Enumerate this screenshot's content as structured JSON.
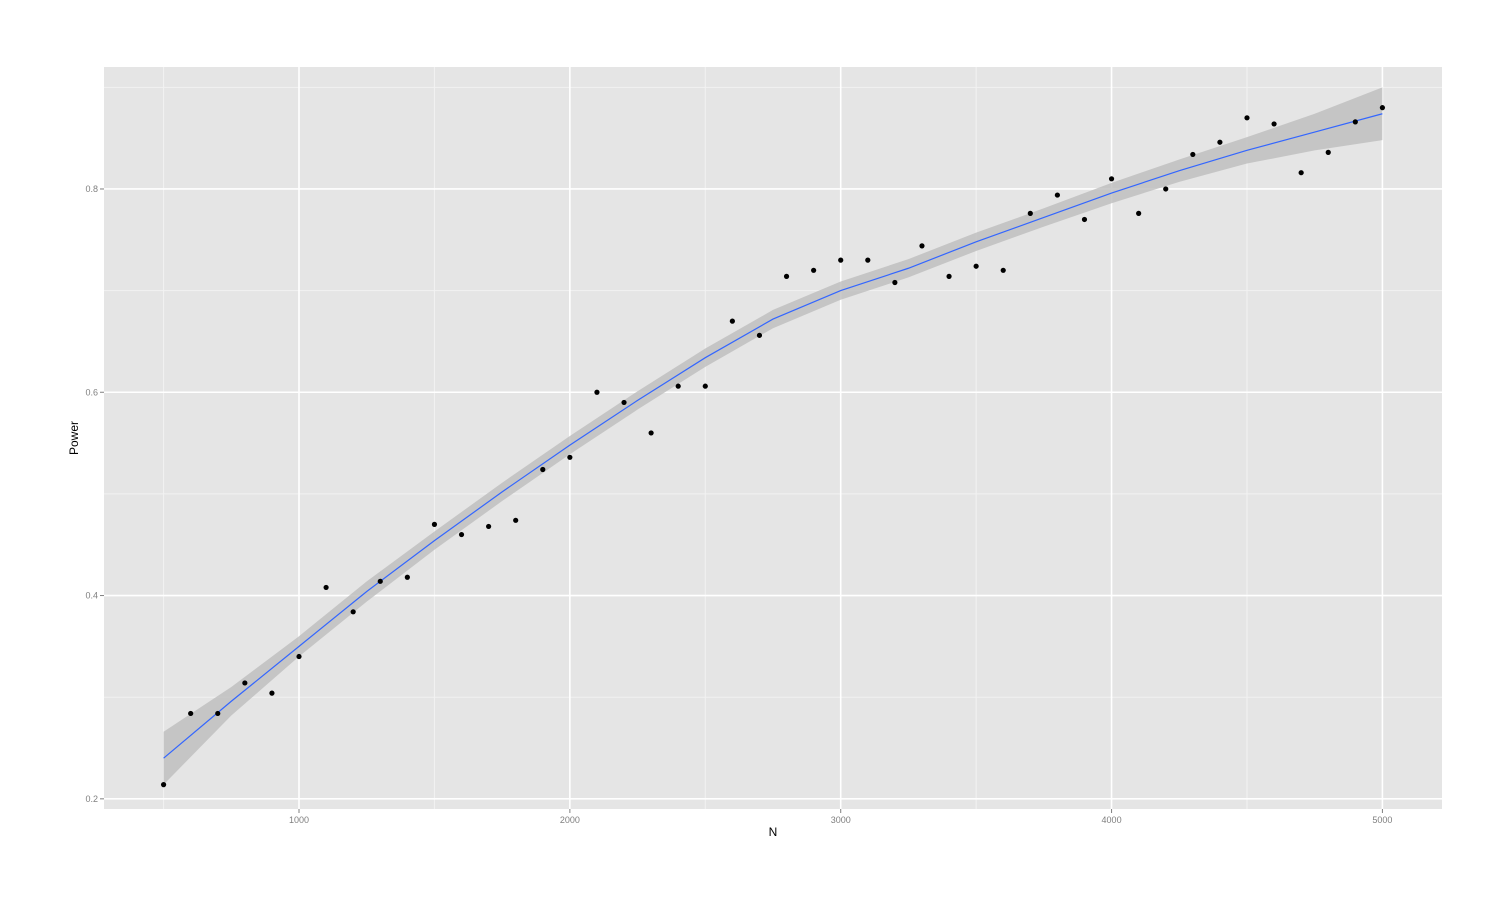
{
  "chart_data": {
    "type": "scatter",
    "title": "",
    "xlabel": "N",
    "ylabel": "Power",
    "xlim": [
      280,
      5220
    ],
    "ylim": [
      0.19,
      0.92
    ],
    "x_ticks": [
      1000,
      2000,
      3000,
      4000,
      5000
    ],
    "y_ticks": [
      0.2,
      0.4,
      0.6,
      0.8
    ],
    "x_tick_labels": [
      "1000",
      "2000",
      "3000",
      "4000",
      "5000"
    ],
    "y_tick_labels": [
      "0.2",
      "0.4",
      "0.6",
      "0.8"
    ],
    "grid": true,
    "legend": "none",
    "colors": {
      "panel": "#e5e5e5",
      "grid": "#ffffff",
      "points": "#000000",
      "smooth_line": "#3366ff",
      "confidence_band": "#bdbdbd"
    },
    "points": {
      "x": [
        500,
        600,
        700,
        800,
        900,
        1000,
        1100,
        1200,
        1300,
        1400,
        1500,
        1600,
        1700,
        1800,
        1900,
        2000,
        2100,
        2200,
        2300,
        2400,
        2500,
        2600,
        2700,
        2800,
        2900,
        3000,
        3100,
        3200,
        3300,
        3400,
        3500,
        3600,
        3700,
        3800,
        3900,
        4000,
        4100,
        4200,
        4300,
        4400,
        4500,
        4600,
        4700,
        4800,
        4900,
        5000
      ],
      "y": [
        0.214,
        0.284,
        0.284,
        0.314,
        0.304,
        0.34,
        0.408,
        0.384,
        0.414,
        0.418,
        0.47,
        0.46,
        0.468,
        0.474,
        0.524,
        0.536,
        0.6,
        0.59,
        0.56,
        0.606,
        0.606,
        0.67,
        0.656,
        0.714,
        0.72,
        0.73,
        0.73,
        0.708,
        0.744,
        0.714,
        0.724,
        0.72,
        0.776,
        0.794,
        0.77,
        0.81,
        0.776,
        0.8,
        0.834,
        0.846,
        0.87,
        0.864,
        0.816,
        0.836,
        0.866,
        0.88
      ]
    },
    "smooth": {
      "x": [
        500,
        750,
        1000,
        1250,
        1500,
        1750,
        2000,
        2250,
        2500,
        2750,
        3000,
        3250,
        3500,
        3750,
        4000,
        4250,
        4500,
        4750,
        5000
      ],
      "y": [
        0.24,
        0.296,
        0.35,
        0.404,
        0.454,
        0.502,
        0.548,
        0.592,
        0.634,
        0.672,
        0.7,
        0.722,
        0.748,
        0.772,
        0.796,
        0.818,
        0.838,
        0.856,
        0.874
      ],
      "ymin": [
        0.214,
        0.282,
        0.34,
        0.394,
        0.445,
        0.493,
        0.539,
        0.583,
        0.625,
        0.663,
        0.691,
        0.713,
        0.739,
        0.763,
        0.786,
        0.807,
        0.825,
        0.838,
        0.848
      ],
      "ymax": [
        0.266,
        0.31,
        0.36,
        0.414,
        0.463,
        0.511,
        0.557,
        0.601,
        0.643,
        0.681,
        0.709,
        0.731,
        0.757,
        0.781,
        0.806,
        0.829,
        0.851,
        0.874,
        0.9
      ]
    }
  }
}
